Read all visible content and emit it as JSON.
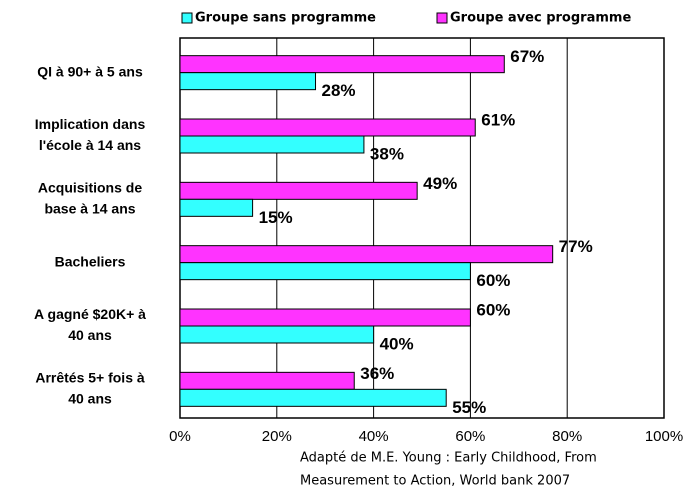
{
  "chart_data": {
    "type": "hbar",
    "categories": [
      [
        "QI à 90+ à 5 ans"
      ],
      [
        "Implication dans",
        "l'école à 14 ans"
      ],
      [
        "Acquisitions de",
        "base à 14 ans"
      ],
      [
        "Bacheliers"
      ],
      [
        "A gagné $20K+ à",
        "40 ans"
      ],
      [
        "Arrêtés 5+ fois à",
        "40 ans"
      ]
    ],
    "series": [
      {
        "name": "Groupe sans programme",
        "color": "#33ffff",
        "values": [
          28,
          38,
          15,
          60,
          40,
          55
        ],
        "value_labels": [
          "28%",
          "38%",
          "15%",
          "60%",
          "40%",
          "55%"
        ]
      },
      {
        "name": "Groupe avec programme",
        "color": "#ff33ff",
        "values": [
          67,
          61,
          49,
          77,
          60,
          36
        ],
        "value_labels": [
          "67%",
          "61%",
          "49%",
          "77%",
          "60%",
          "36%"
        ]
      }
    ],
    "xlim": [
      0,
      100
    ],
    "xticks": [
      {
        "value": 0,
        "label": "0%"
      },
      {
        "value": 20,
        "label": "20%"
      },
      {
        "value": 40,
        "label": "40%"
      },
      {
        "value": 60,
        "label": "60%"
      },
      {
        "value": 80,
        "label": "80%"
      },
      {
        "value": 100,
        "label": "100%"
      }
    ],
    "grid": true,
    "source": [
      "Adapté de M.E. Young : Early Childhood, From",
      "Measurement to Action, World bank 2007"
    ]
  }
}
